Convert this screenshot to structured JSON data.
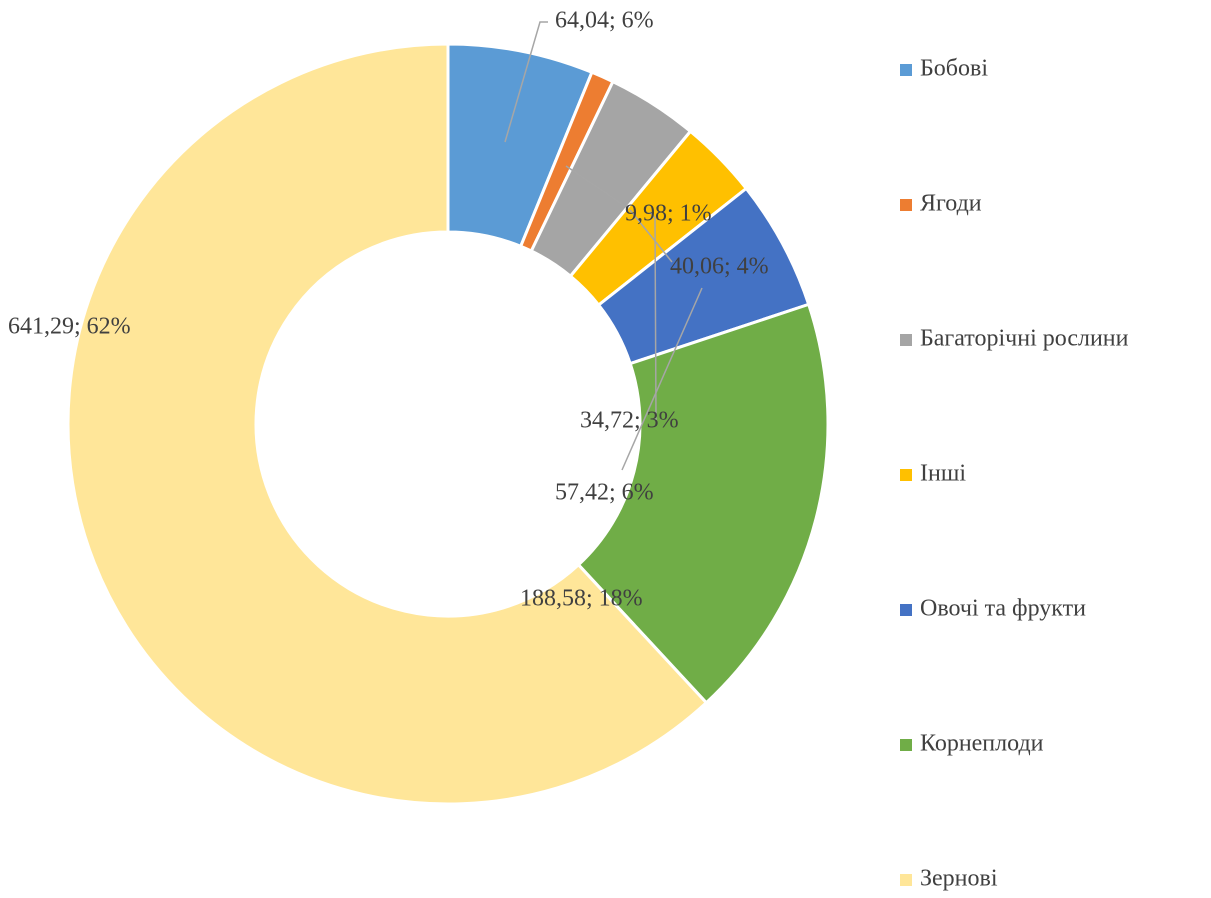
{
  "chart_data": {
    "type": "donut",
    "categories": [
      "Бобові",
      "Ягоди",
      "Багаторічні рослини",
      "Інші",
      "Овочі та фрукти",
      "Корнеплоди",
      "Зернові"
    ],
    "values": [
      64.04,
      9.98,
      40.06,
      34.72,
      57.42,
      188.58,
      641.29
    ],
    "value_labels": [
      "64,04; 6%",
      "9,98; 1%",
      "40,06; 4%",
      "34,72; 3%",
      "57,42; 6%",
      "188,58; 18%",
      "641,29; 62%"
    ],
    "colors": [
      "#5b9bd5",
      "#ed7d31",
      "#a5a5a5",
      "#ffc000",
      "#4472c4",
      "#70ad47",
      "#ffe699"
    ],
    "legend": "right"
  }
}
